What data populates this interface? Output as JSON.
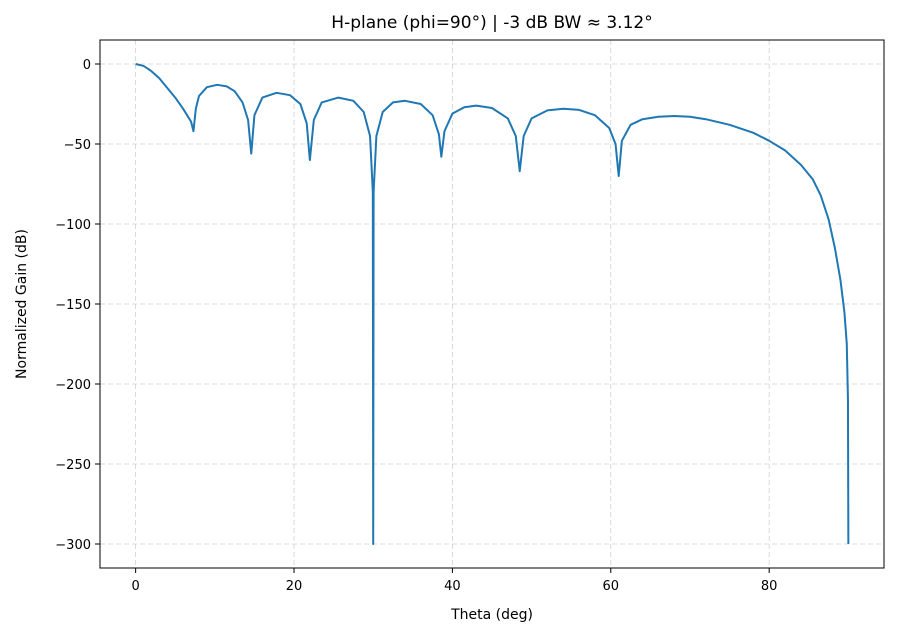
{
  "chart_data": {
    "type": "line",
    "title": "H-plane (phi=90°) |  -3 dB BW ≈ 3.12°",
    "xlabel": "Theta (deg)",
    "ylabel": "Normalized Gain (dB)",
    "xlim": [
      -4.5,
      94.5
    ],
    "ylim": [
      -315,
      15
    ],
    "xticks": [
      0,
      20,
      40,
      60,
      80
    ],
    "yticks": [
      0,
      -50,
      -100,
      -150,
      -200,
      -250,
      -300
    ],
    "xtick_labels": [
      "0",
      "20",
      "40",
      "60",
      "80"
    ],
    "ytick_labels": [
      "0",
      "−50",
      "−100",
      "−150",
      "−200",
      "−250",
      "−300"
    ],
    "grid": true,
    "line_color": "#1f77b4",
    "series": [
      {
        "x": [
          0,
          1,
          1.56,
          2,
          3,
          4,
          5,
          6,
          7,
          7.3,
          7.6,
          8,
          9,
          10.3,
          11.5,
          12.5,
          13.5,
          14.2,
          14.6,
          15,
          16,
          17.8,
          19.5,
          20.8,
          21.6,
          22,
          22.5,
          23.5,
          25.6,
          27.5,
          28.8,
          29.6,
          29.95,
          30,
          30.05,
          30.4,
          31.2,
          32.5,
          34,
          36,
          37.5,
          38.3,
          38.6,
          39,
          40,
          41.5,
          43,
          45,
          47,
          48,
          48.5,
          49,
          50,
          52,
          54,
          56,
          58,
          59.8,
          60.6,
          61,
          61.4,
          62.5,
          64,
          66,
          68,
          70,
          72,
          75,
          78,
          80,
          82,
          84,
          85.5,
          86.5,
          87.5,
          88.3,
          89,
          89.5,
          89.8,
          89.95,
          90
        ],
        "y": [
          0,
          -1.2,
          -3,
          -4.5,
          -9,
          -15,
          -21,
          -28,
          -36,
          -42,
          -28,
          -20,
          -14.5,
          -13,
          -14,
          -17,
          -24,
          -35,
          -56,
          -32,
          -21,
          -18,
          -19.5,
          -25,
          -37,
          -60,
          -35,
          -24,
          -21,
          -23,
          -30,
          -45,
          -80,
          -300,
          -80,
          -45,
          -30,
          -24,
          -23,
          -25,
          -32,
          -44,
          -58,
          -42,
          -31,
          -27,
          -26,
          -27.5,
          -34,
          -45,
          -67,
          -45,
          -34,
          -29,
          -28,
          -28.7,
          -32,
          -40,
          -50,
          -70,
          -48,
          -38,
          -34.5,
          -33,
          -32.5,
          -33,
          -34.5,
          -38,
          -43,
          -48,
          -54,
          -63,
          -72,
          -82,
          -97,
          -115,
          -135,
          -155,
          -175,
          -210,
          -300
        ]
      }
    ]
  }
}
